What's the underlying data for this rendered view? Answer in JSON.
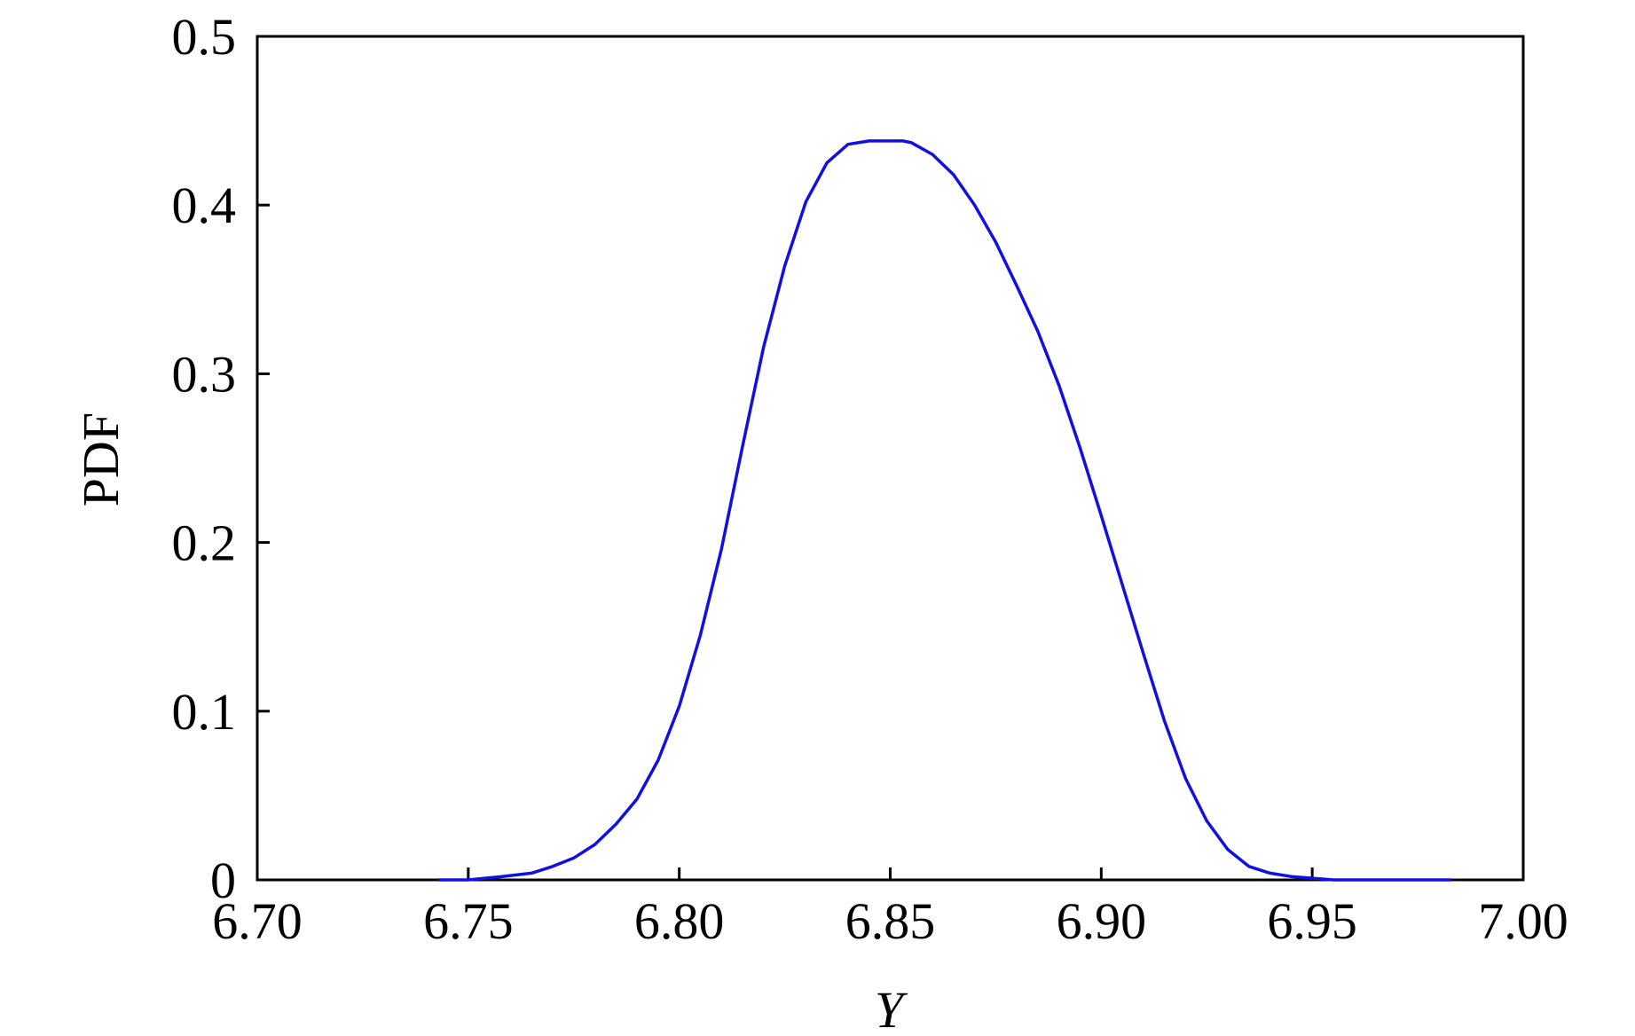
{
  "chart_data": {
    "type": "line",
    "title": "",
    "xlabel": "Y",
    "ylabel": "PDF",
    "xlim": [
      6.7,
      7.0
    ],
    "ylim": [
      0,
      0.5
    ],
    "x_ticks": [
      6.7,
      6.75,
      6.8,
      6.85,
      6.9,
      6.95,
      7.0
    ],
    "x_tick_labels": [
      "6.70",
      "6.75",
      "6.80",
      "6.85",
      "6.90",
      "6.95",
      "7.00"
    ],
    "y_ticks": [
      0,
      0.1,
      0.2,
      0.3,
      0.4,
      0.5
    ],
    "y_tick_labels": [
      "0",
      "0.1",
      "0.2",
      "0.3",
      "0.4",
      "0.5"
    ],
    "grid": false,
    "series": [
      {
        "color": "#1010e0",
        "x": [
          6.743,
          6.75,
          6.758,
          6.765,
          6.77,
          6.775,
          6.78,
          6.785,
          6.79,
          6.795,
          6.8,
          6.805,
          6.81,
          6.815,
          6.82,
          6.825,
          6.83,
          6.835,
          6.84,
          6.845,
          6.85,
          6.853,
          6.855,
          6.86,
          6.865,
          6.87,
          6.875,
          6.88,
          6.885,
          6.89,
          6.895,
          6.9,
          6.905,
          6.91,
          6.915,
          6.92,
          6.925,
          6.93,
          6.935,
          6.94,
          6.945,
          6.95,
          6.955,
          6.96,
          6.97,
          6.983
        ],
        "y": [
          0.0,
          0.0,
          0.002,
          0.004,
          0.008,
          0.013,
          0.021,
          0.033,
          0.048,
          0.071,
          0.103,
          0.145,
          0.196,
          0.257,
          0.316,
          0.364,
          0.402,
          0.425,
          0.436,
          0.438,
          0.438,
          0.438,
          0.437,
          0.43,
          0.418,
          0.4,
          0.378,
          0.352,
          0.325,
          0.293,
          0.256,
          0.216,
          0.175,
          0.134,
          0.094,
          0.06,
          0.035,
          0.018,
          0.008,
          0.004,
          0.002,
          0.001,
          0.0,
          0.0,
          0.0,
          0.0
        ]
      }
    ]
  }
}
